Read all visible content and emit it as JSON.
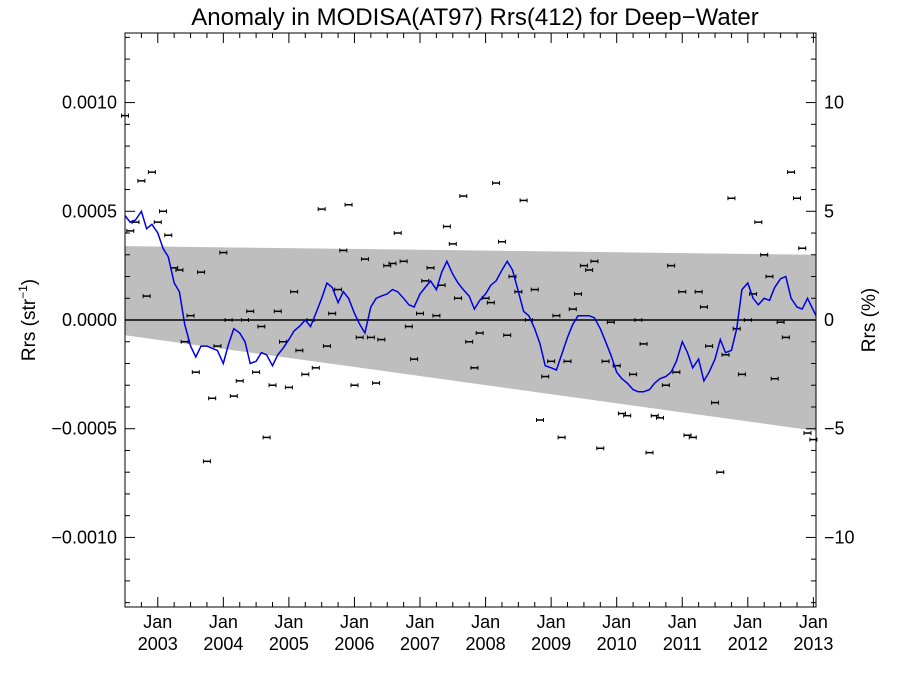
{
  "chart_data": {
    "type": "scatter",
    "title": "Anomaly in MODISA(AT97) Rrs(412) for Deep−Water",
    "ylabel_left_base": "Rrs (str",
    "ylabel_left_sup": "−1",
    "ylabel_left_end": ")",
    "ylabel_right": "Rrs (%)",
    "xlim": [
      2002.5,
      2013.04
    ],
    "ylim": [
      -0.00132,
      0.00132
    ],
    "ylim_right": [
      -13.2,
      13.2
    ],
    "grid": false,
    "colors": {
      "smooth": "#0000e6",
      "band": "#bebebe",
      "points": "#000000",
      "zero_line": "#000000"
    },
    "y_ticks_left": [
      {
        "value": 0.001,
        "label": "0.0010"
      },
      {
        "value": 0.0005,
        "label": "0.0005"
      },
      {
        "value": 0.0,
        "label": "0.0000"
      },
      {
        "value": -0.0005,
        "label": "−0.0005"
      },
      {
        "value": -0.001,
        "label": "−0.0010"
      }
    ],
    "y_ticks_right": [
      {
        "value": 10,
        "label": "10"
      },
      {
        "value": 5,
        "label": "5"
      },
      {
        "value": 0,
        "label": "0"
      },
      {
        "value": -5,
        "label": "−5"
      },
      {
        "value": -10,
        "label": "−10"
      }
    ],
    "x_ticks": [
      {
        "value": 2003.0,
        "month": "Jan",
        "year": "2003"
      },
      {
        "value": 2004.0,
        "month": "Jan",
        "year": "2004"
      },
      {
        "value": 2005.0,
        "month": "Jan",
        "year": "2005"
      },
      {
        "value": 2006.0,
        "month": "Jan",
        "year": "2006"
      },
      {
        "value": 2007.0,
        "month": "Jan",
        "year": "2007"
      },
      {
        "value": 2008.0,
        "month": "Jan",
        "year": "2008"
      },
      {
        "value": 2009.0,
        "month": "Jan",
        "year": "2009"
      },
      {
        "value": 2010.0,
        "month": "Jan",
        "year": "2010"
      },
      {
        "value": 2011.0,
        "month": "Jan",
        "year": "2011"
      },
      {
        "value": 2012.0,
        "month": "Jan",
        "year": "2012"
      },
      {
        "value": 2013.0,
        "month": "Jan",
        "year": "2013"
      }
    ],
    "band": {
      "start": {
        "x": 2002.5,
        "upper": 0.00034,
        "lower": -7e-05
      },
      "end": {
        "x": 2013.04,
        "upper": 0.0003,
        "lower": -0.00051
      }
    },
    "points": [
      [
        2002.5,
        0.00094
      ],
      [
        2002.58,
        0.00041
      ],
      [
        2002.66,
        0.00045
      ],
      [
        2002.75,
        0.00064
      ],
      [
        2002.83,
        0.00011
      ],
      [
        2002.91,
        0.00068
      ],
      [
        2003.0,
        0.00045
      ],
      [
        2003.08,
        0.0005
      ],
      [
        2003.16,
        0.00039
      ],
      [
        2003.25,
        0.00024
      ],
      [
        2003.33,
        0.00023
      ],
      [
        2003.41,
        -0.0001
      ],
      [
        2003.5,
        2e-05
      ],
      [
        2003.58,
        -0.00024
      ],
      [
        2003.66,
        0.00022
      ],
      [
        2003.75,
        -0.00065
      ],
      [
        2003.83,
        -0.00036
      ],
      [
        2003.91,
        -0.00012
      ],
      [
        2004.0,
        0.00031
      ],
      [
        2004.08,
        0.0
      ],
      [
        2004.16,
        -0.00035
      ],
      [
        2004.25,
        -0.00028
      ],
      [
        2004.33,
        0.0
      ],
      [
        2004.41,
        4e-05
      ],
      [
        2004.5,
        -0.00024
      ],
      [
        2004.58,
        -3e-05
      ],
      [
        2004.66,
        -0.00054
      ],
      [
        2004.75,
        -0.0003
      ],
      [
        2004.83,
        4e-05
      ],
      [
        2004.91,
        -0.0001
      ],
      [
        2005.0,
        -0.00031
      ],
      [
        2005.08,
        0.00013
      ],
      [
        2005.16,
        -0.00014
      ],
      [
        2005.25,
        -0.00025
      ],
      [
        2005.33,
        0.0
      ],
      [
        2005.41,
        -0.00022
      ],
      [
        2005.5,
        0.00051
      ],
      [
        2005.58,
        -0.00012
      ],
      [
        2005.66,
        3e-05
      ],
      [
        2005.75,
        0.00014
      ],
      [
        2005.83,
        0.00032
      ],
      [
        2005.91,
        0.00053
      ],
      [
        2006.0,
        -0.0003
      ],
      [
        2006.08,
        -8e-05
      ],
      [
        2006.16,
        0.00028
      ],
      [
        2006.25,
        -8e-05
      ],
      [
        2006.33,
        -0.00029
      ],
      [
        2006.41,
        -9e-05
      ],
      [
        2006.5,
        0.00025
      ],
      [
        2006.58,
        0.00026
      ],
      [
        2006.66,
        0.0004
      ],
      [
        2006.75,
        0.00027
      ],
      [
        2006.83,
        -3e-05
      ],
      [
        2006.91,
        -0.00018
      ],
      [
        2007.0,
        3e-05
      ],
      [
        2007.08,
        0.00018
      ],
      [
        2007.16,
        0.00024
      ],
      [
        2007.25,
        2e-05
      ],
      [
        2007.33,
        0.00016
      ],
      [
        2007.41,
        0.00043
      ],
      [
        2007.5,
        0.00035
      ],
      [
        2007.58,
        0.0001
      ],
      [
        2007.66,
        0.00057
      ],
      [
        2007.75,
        -0.0001
      ],
      [
        2007.83,
        -0.00022
      ],
      [
        2007.91,
        -6e-05
      ],
      [
        2008.0,
        0.0001
      ],
      [
        2008.08,
        8e-05
      ],
      [
        2008.16,
        0.00063
      ],
      [
        2008.25,
        0.00036
      ],
      [
        2008.33,
        -7e-05
      ],
      [
        2008.41,
        0.0002
      ],
      [
        2008.5,
        0.00013
      ],
      [
        2008.58,
        0.00055
      ],
      [
        2008.66,
        0.0
      ],
      [
        2008.75,
        0.00014
      ],
      [
        2008.83,
        -0.00046
      ],
      [
        2008.91,
        -0.00026
      ],
      [
        2009.0,
        -0.00019
      ],
      [
        2009.08,
        2e-05
      ],
      [
        2009.16,
        -0.00054
      ],
      [
        2009.25,
        -0.00019
      ],
      [
        2009.33,
        5e-05
      ],
      [
        2009.41,
        0.00012
      ],
      [
        2009.5,
        0.00025
      ],
      [
        2009.58,
        0.00023
      ],
      [
        2009.66,
        0.00027
      ],
      [
        2009.75,
        -0.00059
      ],
      [
        2009.83,
        -0.00019
      ],
      [
        2009.91,
        -1e-05
      ],
      [
        2010.0,
        -0.00021
      ],
      [
        2010.08,
        -0.00043
      ],
      [
        2010.16,
        -0.00044
      ],
      [
        2010.25,
        -0.00025
      ],
      [
        2010.33,
        0.0
      ],
      [
        2010.41,
        -0.00011
      ],
      [
        2010.5,
        -0.00061
      ],
      [
        2010.58,
        -0.00044
      ],
      [
        2010.66,
        -0.00045
      ],
      [
        2010.75,
        -0.0003
      ],
      [
        2010.83,
        0.00025
      ],
      [
        2010.91,
        -0.00024
      ],
      [
        2011.0,
        0.00013
      ],
      [
        2011.08,
        -0.00053
      ],
      [
        2011.16,
        -0.00054
      ],
      [
        2011.25,
        0.00013
      ],
      [
        2011.33,
        6e-05
      ],
      [
        2011.41,
        -0.00012
      ],
      [
        2011.5,
        -0.00038
      ],
      [
        2011.58,
        -0.0007
      ],
      [
        2011.66,
        -0.00016
      ],
      [
        2011.75,
        0.00056
      ],
      [
        2011.83,
        -4e-05
      ],
      [
        2011.91,
        -0.00025
      ],
      [
        2012.0,
        0.0
      ],
      [
        2012.08,
        0.00012
      ],
      [
        2012.16,
        0.00045
      ],
      [
        2012.25,
        0.0003
      ],
      [
        2012.33,
        0.0002
      ],
      [
        2012.41,
        -0.00027
      ],
      [
        2012.5,
        -1e-05
      ],
      [
        2012.58,
        -8e-05
      ],
      [
        2012.66,
        0.00068
      ],
      [
        2012.75,
        0.00056
      ],
      [
        2012.83,
        0.00033
      ],
      [
        2012.91,
        -0.00052
      ],
      [
        2013.0,
        -0.00055
      ]
    ],
    "smooth_line": [
      [
        2002.5,
        0.00048
      ],
      [
        2002.58,
        0.00045
      ],
      [
        2002.66,
        0.00046
      ],
      [
        2002.75,
        0.0005
      ],
      [
        2002.83,
        0.00042
      ],
      [
        2002.91,
        0.00044
      ],
      [
        2003.0,
        0.0004
      ],
      [
        2003.08,
        0.00033
      ],
      [
        2003.16,
        0.00029
      ],
      [
        2003.25,
        0.00017
      ],
      [
        2003.33,
        0.00013
      ],
      [
        2003.41,
        -2e-05
      ],
      [
        2003.5,
        -0.00012
      ],
      [
        2003.58,
        -0.00017
      ],
      [
        2003.66,
        -0.00012
      ],
      [
        2003.75,
        -0.00012
      ],
      [
        2003.83,
        -0.00013
      ],
      [
        2003.91,
        -0.00014
      ],
      [
        2004.0,
        -0.0002
      ],
      [
        2004.08,
        -0.00011
      ],
      [
        2004.16,
        -4e-05
      ],
      [
        2004.25,
        -6e-05
      ],
      [
        2004.33,
        -0.0001
      ],
      [
        2004.41,
        -0.0002
      ],
      [
        2004.5,
        -0.00019
      ],
      [
        2004.58,
        -0.00015
      ],
      [
        2004.66,
        -0.00016
      ],
      [
        2004.75,
        -0.00021
      ],
      [
        2004.83,
        -0.00016
      ],
      [
        2004.91,
        -0.00013
      ],
      [
        2005.0,
        -9e-05
      ],
      [
        2005.08,
        -5e-05
      ],
      [
        2005.16,
        -3e-05
      ],
      [
        2005.25,
        0.0
      ],
      [
        2005.33,
        -3e-05
      ],
      [
        2005.41,
        3e-05
      ],
      [
        2005.5,
        0.0001
      ],
      [
        2005.58,
        0.00017
      ],
      [
        2005.66,
        0.00015
      ],
      [
        2005.75,
        8e-05
      ],
      [
        2005.83,
        0.00013
      ],
      [
        2005.91,
        0.0001
      ],
      [
        2006.0,
        3e-05
      ],
      [
        2006.08,
        -2e-05
      ],
      [
        2006.16,
        -6e-05
      ],
      [
        2006.25,
        6e-05
      ],
      [
        2006.33,
        0.0001
      ],
      [
        2006.41,
        0.00011
      ],
      [
        2006.5,
        0.00012
      ],
      [
        2006.58,
        0.00014
      ],
      [
        2006.66,
        0.00013
      ],
      [
        2006.75,
        0.0001
      ],
      [
        2006.83,
        7e-05
      ],
      [
        2006.91,
        6e-05
      ],
      [
        2007.0,
        0.00012
      ],
      [
        2007.08,
        0.00015
      ],
      [
        2007.16,
        0.00018
      ],
      [
        2007.25,
        0.00014
      ],
      [
        2007.33,
        0.00022
      ],
      [
        2007.41,
        0.00027
      ],
      [
        2007.5,
        0.00021
      ],
      [
        2007.58,
        0.00017
      ],
      [
        2007.66,
        0.00014
      ],
      [
        2007.75,
        0.00011
      ],
      [
        2007.83,
        5e-05
      ],
      [
        2007.91,
        9e-05
      ],
      [
        2008.0,
        0.00012
      ],
      [
        2008.08,
        0.00016
      ],
      [
        2008.16,
        0.00018
      ],
      [
        2008.25,
        0.00023
      ],
      [
        2008.33,
        0.00027
      ],
      [
        2008.41,
        0.00023
      ],
      [
        2008.5,
        0.00013
      ],
      [
        2008.58,
        4e-05
      ],
      [
        2008.66,
        2e-05
      ],
      [
        2008.75,
        -4e-05
      ],
      [
        2008.83,
        -0.00011
      ],
      [
        2008.91,
        -0.00021
      ],
      [
        2009.0,
        -0.00022
      ],
      [
        2009.08,
        -0.00023
      ],
      [
        2009.16,
        -0.00016
      ],
      [
        2009.25,
        -8e-05
      ],
      [
        2009.33,
        -2e-05
      ],
      [
        2009.41,
        2e-05
      ],
      [
        2009.5,
        2e-05
      ],
      [
        2009.58,
        2e-05
      ],
      [
        2009.66,
        1e-05
      ],
      [
        2009.75,
        -4e-05
      ],
      [
        2009.83,
        -0.0001
      ],
      [
        2009.91,
        -0.00016
      ],
      [
        2010.0,
        -0.00024
      ],
      [
        2010.08,
        -0.00027
      ],
      [
        2010.16,
        -0.00029
      ],
      [
        2010.25,
        -0.00032
      ],
      [
        2010.33,
        -0.00033
      ],
      [
        2010.41,
        -0.00033
      ],
      [
        2010.5,
        -0.00032
      ],
      [
        2010.58,
        -0.00029
      ],
      [
        2010.66,
        -0.00027
      ],
      [
        2010.75,
        -0.00026
      ],
      [
        2010.83,
        -0.00024
      ],
      [
        2010.91,
        -0.00019
      ],
      [
        2011.0,
        -0.0001
      ],
      [
        2011.08,
        -0.00015
      ],
      [
        2011.16,
        -0.00022
      ],
      [
        2011.25,
        -0.00018
      ],
      [
        2011.33,
        -0.00028
      ],
      [
        2011.41,
        -0.00024
      ],
      [
        2011.5,
        -0.00018
      ],
      [
        2011.58,
        -9e-05
      ],
      [
        2011.66,
        -0.00015
      ],
      [
        2011.75,
        -0.00014
      ],
      [
        2011.83,
        -4e-05
      ],
      [
        2011.91,
        0.00014
      ],
      [
        2012.0,
        0.00017
      ],
      [
        2012.08,
        0.0001
      ],
      [
        2012.16,
        7e-05
      ],
      [
        2012.25,
        0.0001
      ],
      [
        2012.33,
        9e-05
      ],
      [
        2012.41,
        0.00015
      ],
      [
        2012.5,
        0.00019
      ],
      [
        2012.58,
        0.0002
      ],
      [
        2012.66,
        0.0001
      ],
      [
        2012.75,
        6e-05
      ],
      [
        2012.83,
        5e-05
      ],
      [
        2012.91,
        0.0001
      ],
      [
        2013.04,
        2e-05
      ]
    ]
  }
}
